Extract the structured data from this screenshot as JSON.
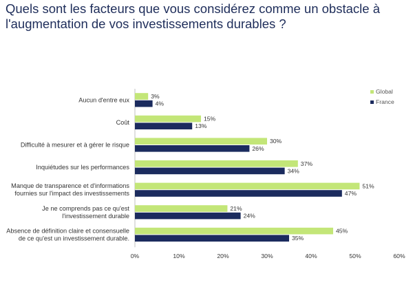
{
  "title": "Quels sont les facteurs que vous considérez comme un obstacle à l'augmentation de vos investissements durables ?",
  "chart_data": {
    "type": "bar",
    "orientation": "horizontal",
    "categories": [
      [
        "Aucun d'entre eux"
      ],
      [
        "Coût"
      ],
      [
        "Difficulté à mesurer et à gérer le risque"
      ],
      [
        "Inquiétudes sur les performances"
      ],
      [
        "Manque de transparence et d'informations",
        "fournies sur l'impact des investissements"
      ],
      [
        "Je ne comprends pas ce qu'est",
        "l'investissement durable"
      ],
      [
        "Absence de définition claire et consensuelle",
        "de ce qu'est un investissement durable."
      ]
    ],
    "series": [
      {
        "name": "Global",
        "color": "#c3e678",
        "values": [
          3,
          15,
          30,
          37,
          51,
          21,
          45
        ]
      },
      {
        "name": "France",
        "color": "#1b2b5e",
        "values": [
          4,
          13,
          26,
          34,
          47,
          24,
          35
        ]
      }
    ],
    "value_suffix": "%",
    "xlim": [
      0,
      60
    ],
    "x_ticks": [
      "0%",
      "10%",
      "20%",
      "30%",
      "40%",
      "50%",
      "60%"
    ],
    "grid": false,
    "legend_position": "top-right"
  }
}
